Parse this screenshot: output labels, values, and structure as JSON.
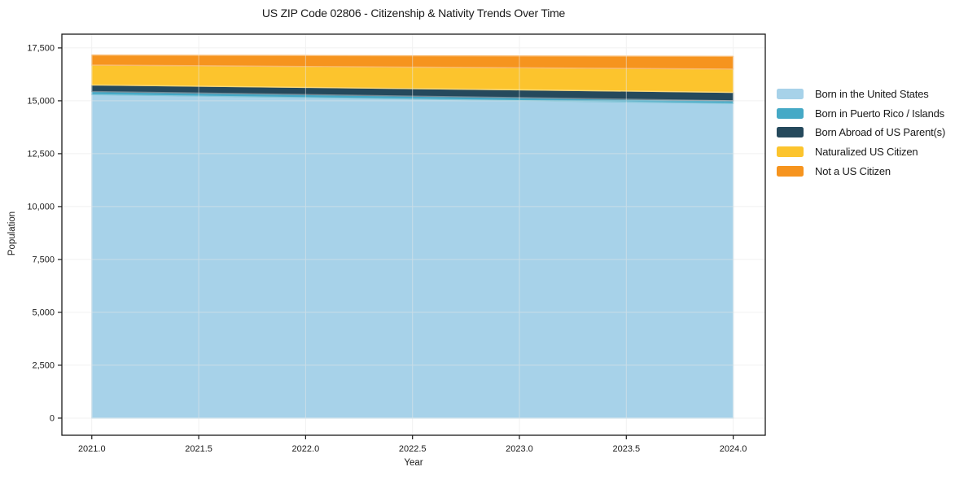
{
  "figure": {
    "title": "US ZIP Code 02806 - Citizenship & Nativity Trends Over Time"
  },
  "chart_data": {
    "type": "area",
    "stacked": true,
    "title": "US ZIP Code 02806 - Citizenship & Nativity Trends Over Time",
    "xlabel": "Year",
    "ylabel": "Population",
    "x": [
      2021,
      2022,
      2023,
      2024
    ],
    "series": [
      {
        "name": "Born in the United States",
        "color": "#A7D2E9",
        "values": [
          15290,
          15150,
          15010,
          14870
        ]
      },
      {
        "name": "Born in Puerto Rico / Islands",
        "color": "#45A9C6",
        "values": [
          150,
          145,
          140,
          130
        ]
      },
      {
        "name": "Born Abroad of US Parent(s)",
        "color": "#25495C",
        "values": [
          310,
          340,
          370,
          400
        ]
      },
      {
        "name": "Naturalized US Citizen",
        "color": "#FCC42D",
        "values": [
          940,
          990,
          1040,
          1100
        ]
      },
      {
        "name": "Not a US Citizen",
        "color": "#F6941E",
        "values": [
          470,
          515,
          560,
          600
        ]
      }
    ],
    "stack_totals": [
      17160,
      17140,
      17120,
      17100
    ],
    "xlim": [
      2020.86,
      2024.15
    ],
    "ylim": [
      -810,
      18150
    ],
    "x_ticks": [
      {
        "v": 2021.0,
        "label": "2021.0"
      },
      {
        "v": 2021.5,
        "label": "2021.5"
      },
      {
        "v": 2022.0,
        "label": "2022.0"
      },
      {
        "v": 2022.5,
        "label": "2022.5"
      },
      {
        "v": 2023.0,
        "label": "2023.0"
      },
      {
        "v": 2023.5,
        "label": "2023.5"
      },
      {
        "v": 2024.0,
        "label": "2024.0"
      }
    ],
    "y_ticks": [
      {
        "v": 0,
        "label": "0"
      },
      {
        "v": 2500,
        "label": "2,500"
      },
      {
        "v": 5000,
        "label": "5,000"
      },
      {
        "v": 7500,
        "label": "7,500"
      },
      {
        "v": 10000,
        "label": "10,000"
      },
      {
        "v": 12500,
        "label": "12,500"
      },
      {
        "v": 15000,
        "label": "15,000"
      },
      {
        "v": 17500,
        "label": "17,500"
      }
    ],
    "grid": true,
    "grid_color": "#e6e6e6",
    "frame_color": "#1a1a1a",
    "legend_position": "outside-right"
  }
}
